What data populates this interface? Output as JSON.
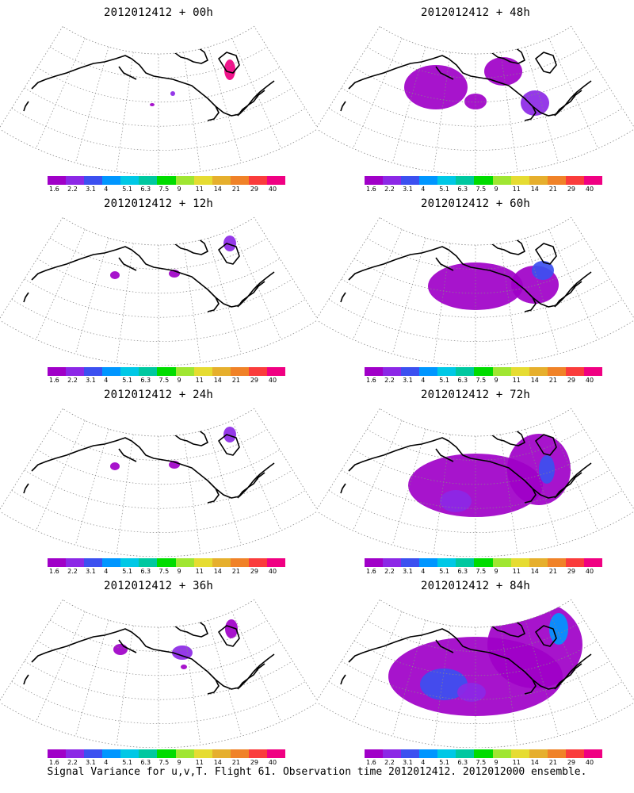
{
  "caption": "Signal Variance for u,v,T. Flight 61. Observation time 2012012412. 2012012000 ensemble.",
  "colorbar": {
    "colors": [
      "#a000c8",
      "#8c28e6",
      "#3c50f0",
      "#0096ff",
      "#00c8e6",
      "#00c8a0",
      "#00dc00",
      "#a0e632",
      "#e6dc32",
      "#e6af2d",
      "#f08228",
      "#fa3c3c",
      "#f00082"
    ],
    "labels": [
      "1.6",
      "2.2",
      "3.1",
      "4",
      "5.1",
      "6.3",
      "7.5",
      "9",
      "11",
      "14",
      "21",
      "29",
      "40"
    ]
  },
  "panels": [
    {
      "title": "2012012412 + 00h",
      "level": 0
    },
    {
      "title": "2012012412 + 48h",
      "level": 3
    },
    {
      "title": "2012012412 + 12h",
      "level": 1
    },
    {
      "title": "2012012412 + 60h",
      "level": 4
    },
    {
      "title": "2012012412 + 24h",
      "level": 1
    },
    {
      "title": "2012012412 + 72h",
      "level": 5
    },
    {
      "title": "2012012412 + 36h",
      "level": 2
    },
    {
      "title": "2012012412 + 84h",
      "level": 6
    }
  ]
}
